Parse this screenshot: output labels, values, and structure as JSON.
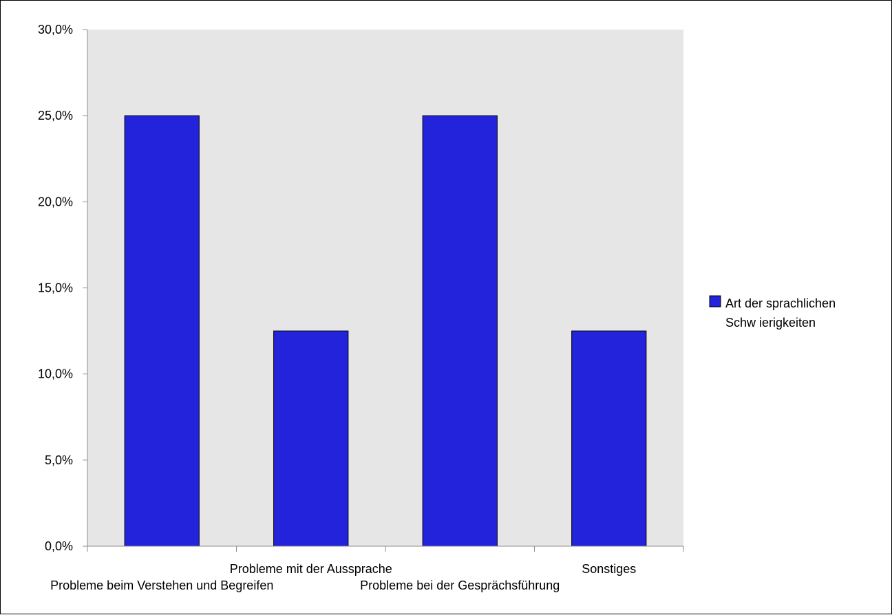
{
  "chart_data": {
    "type": "bar",
    "categories": [
      "Probleme beim Verstehen und Begreifen",
      "Probleme mit der Aussprache",
      "Probleme bei der Gesprächsführung",
      "Sonstiges"
    ],
    "series": [
      {
        "name": "Art der sprachlichen Schw ierigkeiten",
        "values": [
          25.0,
          12.5,
          25.0,
          12.5
        ],
        "color": "#2323dc"
      }
    ],
    "ylim": [
      0,
      30
    ],
    "yticks": [
      0,
      5,
      10,
      15,
      20,
      25,
      30
    ],
    "ytick_labels": [
      "0,0%",
      "5,0%",
      "10,0%",
      "15,0%",
      "20,0%",
      "25,0%",
      "30,0%"
    ],
    "grid": false,
    "legend": {
      "position": "right",
      "lines": [
        "Art der sprachlichen",
        "Schw ierigkeiten"
      ]
    },
    "plot_background": "#e6e6e6"
  }
}
